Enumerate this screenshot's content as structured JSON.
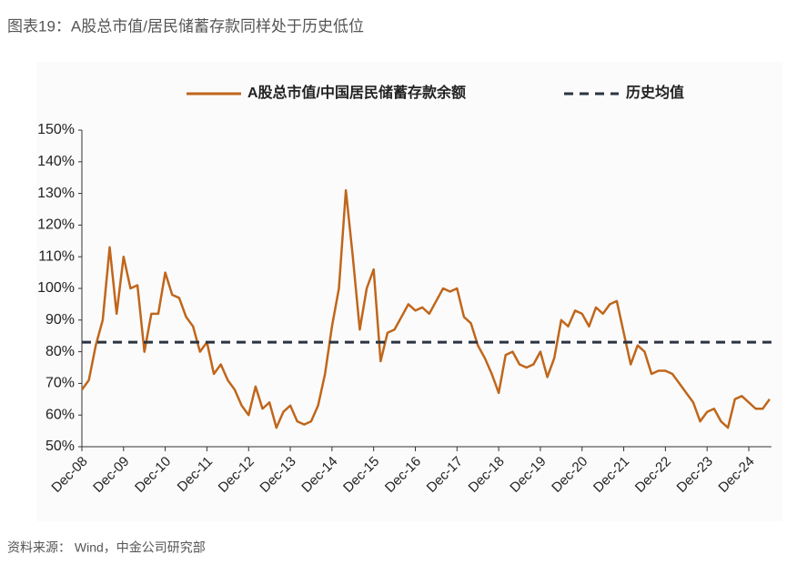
{
  "chart_data": {
    "type": "line",
    "title": "图表19：A股总市值/居民储蓄存款同样处于历史低位",
    "source": "资料来源： Wind，中金公司研究部",
    "categories": [
      "Dec-08",
      null,
      null,
      null,
      null,
      null,
      "Dec-09",
      null,
      null,
      null,
      null,
      null,
      "Dec-10",
      null,
      null,
      null,
      null,
      null,
      "Dec-11",
      null,
      null,
      null,
      null,
      null,
      "Dec-12",
      null,
      null,
      null,
      null,
      null,
      "Dec-13",
      null,
      null,
      null,
      null,
      null,
      "Dec-14",
      null,
      null,
      null,
      null,
      null,
      "Dec-15",
      null,
      null,
      null,
      null,
      null,
      "Dec-16",
      null,
      null,
      null,
      null,
      null,
      "Dec-17",
      null,
      null,
      null,
      null,
      null,
      "Dec-18",
      null,
      null,
      null,
      null,
      null,
      "Dec-19",
      null,
      null,
      null,
      null,
      null,
      "Dec-20",
      null,
      null,
      null,
      null,
      null,
      "Dec-21",
      null,
      null,
      null,
      null,
      null,
      "Dec-22",
      null,
      null,
      null,
      null,
      null,
      "Dec-23",
      null,
      null,
      null,
      null,
      null,
      "Dec-24",
      null,
      null,
      null
    ],
    "series": [
      {
        "name": "A股总市值/中国居民储蓄存款余额",
        "color": "#c0661b",
        "values": [
          68,
          71,
          82,
          90,
          113,
          92,
          110,
          100,
          101,
          80,
          92,
          92,
          105,
          98,
          97,
          91,
          88,
          80,
          83,
          73,
          76,
          71,
          68,
          63,
          60,
          69,
          62,
          64,
          56,
          61,
          63,
          58,
          57,
          58,
          63,
          73,
          88,
          100,
          131,
          110,
          87,
          100,
          106,
          77,
          86,
          87,
          91,
          95,
          93,
          94,
          92,
          96,
          100,
          99,
          100,
          91,
          89,
          82,
          78,
          73,
          67,
          79,
          80,
          76,
          75,
          76,
          80,
          72,
          78,
          90,
          88,
          93,
          92,
          88,
          94,
          92,
          95,
          96,
          86,
          76,
          82,
          80,
          73,
          74,
          74,
          73,
          70,
          67,
          64,
          58,
          61,
          62,
          58,
          56,
          65,
          66,
          64,
          62,
          62,
          65
        ]
      }
    ],
    "mean": {
      "name": "历史均值",
      "value": 83,
      "color": "#2b3440"
    },
    "ylim": [
      50,
      150
    ],
    "yticks": [
      {
        "value": 50,
        "label": "50%"
      },
      {
        "value": 60,
        "label": "60%"
      },
      {
        "value": 70,
        "label": "70%"
      },
      {
        "value": 80,
        "label": "80%"
      },
      {
        "value": 90,
        "label": "90%"
      },
      {
        "value": 100,
        "label": "100%"
      },
      {
        "value": 110,
        "label": "110%"
      },
      {
        "value": 120,
        "label": "120%"
      },
      {
        "value": 130,
        "label": "130%"
      },
      {
        "value": 140,
        "label": "140%"
      },
      {
        "value": 150,
        "label": "150%"
      }
    ],
    "grid": false
  }
}
